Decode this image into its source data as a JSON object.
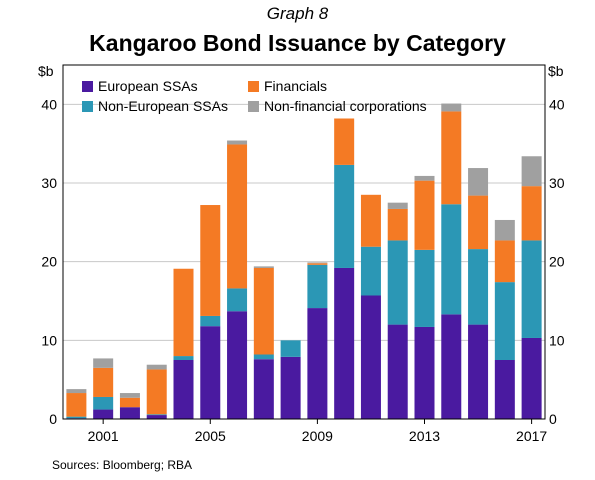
{
  "graph_label": "Graph 8",
  "title": "Kangaroo Bond Issuance by Category",
  "unit_left": "$b",
  "unit_right": "$b",
  "source": "Sources:   Bloomberg; RBA",
  "chart_data": {
    "type": "bar",
    "stacked": true,
    "title": "Kangaroo Bond Issuance by Category",
    "ylabel": "$b",
    "ylim": [
      0,
      45
    ],
    "yticks": [
      0,
      10,
      20,
      30,
      40
    ],
    "grid": true,
    "legend": "top",
    "categories": [
      "2000",
      "2001",
      "2002",
      "2003",
      "2004",
      "2005",
      "2006",
      "2007",
      "2008",
      "2009",
      "2010",
      "2011",
      "2012",
      "2013",
      "2014",
      "2015",
      "2016",
      "2017"
    ],
    "xtick_labels": [
      "2001",
      "2005",
      "2009",
      "2013",
      "2017"
    ],
    "series": [
      {
        "name": "European SSAs",
        "color": "#4a1aa0",
        "values": [
          0.1,
          1.2,
          1.5,
          0.5,
          7.5,
          11.8,
          13.7,
          7.6,
          7.9,
          14.1,
          19.2,
          15.7,
          12.0,
          11.7,
          13.3,
          12.0,
          7.5,
          10.3
        ]
      },
      {
        "name": "Non-European SSAs",
        "color": "#2b97b5",
        "values": [
          0.2,
          1.6,
          0.0,
          0.1,
          0.5,
          1.3,
          2.9,
          0.6,
          2.1,
          5.5,
          13.1,
          6.2,
          10.7,
          9.8,
          14.0,
          9.6,
          9.9,
          12.4
        ]
      },
      {
        "name": "Financials",
        "color": "#f47a24",
        "values": [
          3.0,
          3.7,
          1.2,
          5.7,
          11.1,
          14.1,
          18.3,
          11.0,
          0.0,
          0.2,
          5.9,
          6.6,
          4.0,
          8.8,
          11.8,
          6.8,
          5.3,
          6.9
        ]
      },
      {
        "name": "Non-financial corporations",
        "color": "#a0a0a0",
        "values": [
          0.5,
          1.2,
          0.6,
          0.6,
          0.0,
          0.0,
          0.5,
          0.2,
          0.0,
          0.1,
          0.0,
          0.0,
          0.8,
          0.6,
          1.0,
          3.5,
          2.6,
          3.8
        ]
      }
    ]
  }
}
